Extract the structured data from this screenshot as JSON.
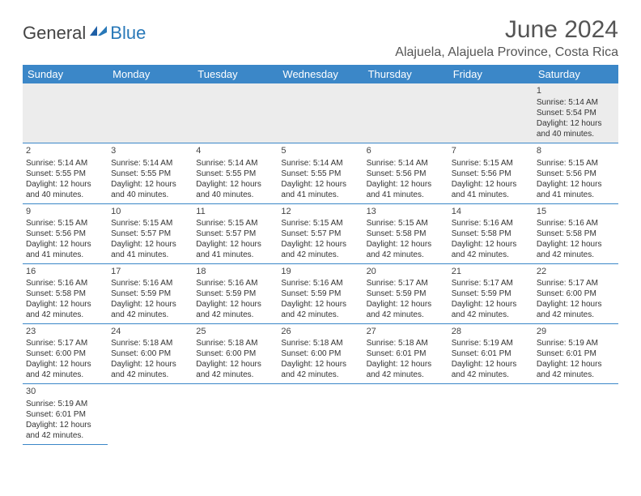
{
  "logo": {
    "general": "General",
    "blue": "Blue"
  },
  "title": "June 2024",
  "location": "Alajuela, Alajuela Province, Costa Rica",
  "colors": {
    "header_bg": "#3b87c8",
    "header_text": "#ffffff",
    "cell_border": "#3b87c8",
    "firstrow_bg": "#ececec",
    "body_text": "#333333",
    "title_text": "#555555"
  },
  "weekdays": [
    "Sunday",
    "Monday",
    "Tuesday",
    "Wednesday",
    "Thursday",
    "Friday",
    "Saturday"
  ],
  "days": [
    null,
    null,
    null,
    null,
    null,
    null,
    {
      "num": "1",
      "sunrise": "Sunrise: 5:14 AM",
      "sunset": "Sunset: 5:54 PM",
      "daylight": "Daylight: 12 hours and 40 minutes."
    },
    {
      "num": "2",
      "sunrise": "Sunrise: 5:14 AM",
      "sunset": "Sunset: 5:55 PM",
      "daylight": "Daylight: 12 hours and 40 minutes."
    },
    {
      "num": "3",
      "sunrise": "Sunrise: 5:14 AM",
      "sunset": "Sunset: 5:55 PM",
      "daylight": "Daylight: 12 hours and 40 minutes."
    },
    {
      "num": "4",
      "sunrise": "Sunrise: 5:14 AM",
      "sunset": "Sunset: 5:55 PM",
      "daylight": "Daylight: 12 hours and 40 minutes."
    },
    {
      "num": "5",
      "sunrise": "Sunrise: 5:14 AM",
      "sunset": "Sunset: 5:55 PM",
      "daylight": "Daylight: 12 hours and 41 minutes."
    },
    {
      "num": "6",
      "sunrise": "Sunrise: 5:14 AM",
      "sunset": "Sunset: 5:56 PM",
      "daylight": "Daylight: 12 hours and 41 minutes."
    },
    {
      "num": "7",
      "sunrise": "Sunrise: 5:15 AM",
      "sunset": "Sunset: 5:56 PM",
      "daylight": "Daylight: 12 hours and 41 minutes."
    },
    {
      "num": "8",
      "sunrise": "Sunrise: 5:15 AM",
      "sunset": "Sunset: 5:56 PM",
      "daylight": "Daylight: 12 hours and 41 minutes."
    },
    {
      "num": "9",
      "sunrise": "Sunrise: 5:15 AM",
      "sunset": "Sunset: 5:56 PM",
      "daylight": "Daylight: 12 hours and 41 minutes."
    },
    {
      "num": "10",
      "sunrise": "Sunrise: 5:15 AM",
      "sunset": "Sunset: 5:57 PM",
      "daylight": "Daylight: 12 hours and 41 minutes."
    },
    {
      "num": "11",
      "sunrise": "Sunrise: 5:15 AM",
      "sunset": "Sunset: 5:57 PM",
      "daylight": "Daylight: 12 hours and 41 minutes."
    },
    {
      "num": "12",
      "sunrise": "Sunrise: 5:15 AM",
      "sunset": "Sunset: 5:57 PM",
      "daylight": "Daylight: 12 hours and 42 minutes."
    },
    {
      "num": "13",
      "sunrise": "Sunrise: 5:15 AM",
      "sunset": "Sunset: 5:58 PM",
      "daylight": "Daylight: 12 hours and 42 minutes."
    },
    {
      "num": "14",
      "sunrise": "Sunrise: 5:16 AM",
      "sunset": "Sunset: 5:58 PM",
      "daylight": "Daylight: 12 hours and 42 minutes."
    },
    {
      "num": "15",
      "sunrise": "Sunrise: 5:16 AM",
      "sunset": "Sunset: 5:58 PM",
      "daylight": "Daylight: 12 hours and 42 minutes."
    },
    {
      "num": "16",
      "sunrise": "Sunrise: 5:16 AM",
      "sunset": "Sunset: 5:58 PM",
      "daylight": "Daylight: 12 hours and 42 minutes."
    },
    {
      "num": "17",
      "sunrise": "Sunrise: 5:16 AM",
      "sunset": "Sunset: 5:59 PM",
      "daylight": "Daylight: 12 hours and 42 minutes."
    },
    {
      "num": "18",
      "sunrise": "Sunrise: 5:16 AM",
      "sunset": "Sunset: 5:59 PM",
      "daylight": "Daylight: 12 hours and 42 minutes."
    },
    {
      "num": "19",
      "sunrise": "Sunrise: 5:16 AM",
      "sunset": "Sunset: 5:59 PM",
      "daylight": "Daylight: 12 hours and 42 minutes."
    },
    {
      "num": "20",
      "sunrise": "Sunrise: 5:17 AM",
      "sunset": "Sunset: 5:59 PM",
      "daylight": "Daylight: 12 hours and 42 minutes."
    },
    {
      "num": "21",
      "sunrise": "Sunrise: 5:17 AM",
      "sunset": "Sunset: 5:59 PM",
      "daylight": "Daylight: 12 hours and 42 minutes."
    },
    {
      "num": "22",
      "sunrise": "Sunrise: 5:17 AM",
      "sunset": "Sunset: 6:00 PM",
      "daylight": "Daylight: 12 hours and 42 minutes."
    },
    {
      "num": "23",
      "sunrise": "Sunrise: 5:17 AM",
      "sunset": "Sunset: 6:00 PM",
      "daylight": "Daylight: 12 hours and 42 minutes."
    },
    {
      "num": "24",
      "sunrise": "Sunrise: 5:18 AM",
      "sunset": "Sunset: 6:00 PM",
      "daylight": "Daylight: 12 hours and 42 minutes."
    },
    {
      "num": "25",
      "sunrise": "Sunrise: 5:18 AM",
      "sunset": "Sunset: 6:00 PM",
      "daylight": "Daylight: 12 hours and 42 minutes."
    },
    {
      "num": "26",
      "sunrise": "Sunrise: 5:18 AM",
      "sunset": "Sunset: 6:00 PM",
      "daylight": "Daylight: 12 hours and 42 minutes."
    },
    {
      "num": "27",
      "sunrise": "Sunrise: 5:18 AM",
      "sunset": "Sunset: 6:01 PM",
      "daylight": "Daylight: 12 hours and 42 minutes."
    },
    {
      "num": "28",
      "sunrise": "Sunrise: 5:19 AM",
      "sunset": "Sunset: 6:01 PM",
      "daylight": "Daylight: 12 hours and 42 minutes."
    },
    {
      "num": "29",
      "sunrise": "Sunrise: 5:19 AM",
      "sunset": "Sunset: 6:01 PM",
      "daylight": "Daylight: 12 hours and 42 minutes."
    },
    {
      "num": "30",
      "sunrise": "Sunrise: 5:19 AM",
      "sunset": "Sunset: 6:01 PM",
      "daylight": "Daylight: 12 hours and 42 minutes."
    },
    null,
    null,
    null,
    null,
    null,
    null
  ]
}
